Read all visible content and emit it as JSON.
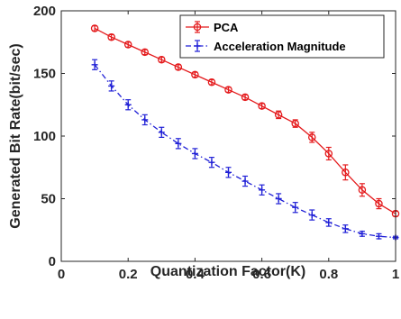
{
  "chart_data": {
    "type": "line",
    "xlabel": "Quantization Factor(K)",
    "ylabel": "Generated Bit Rate(bit/sec)",
    "xlim": [
      0,
      1
    ],
    "ylim": [
      0,
      200
    ],
    "xticks": [
      0,
      0.2,
      0.4,
      0.6,
      0.8,
      1
    ],
    "yticks": [
      0,
      50,
      100,
      150,
      200
    ],
    "xtick_labels": [
      "0",
      "0.2",
      "0.4",
      "0.6",
      "0.8",
      "1"
    ],
    "ytick_labels": [
      "0",
      "50",
      "100",
      "150",
      "200"
    ],
    "grid": false,
    "legend_position": "top-right",
    "x": [
      0.1,
      0.15,
      0.2,
      0.25,
      0.3,
      0.35,
      0.4,
      0.45,
      0.5,
      0.55,
      0.6,
      0.65,
      0.7,
      0.75,
      0.8,
      0.85,
      0.9,
      0.95,
      1.0
    ],
    "series": [
      {
        "name": "PCA",
        "color": "#e41a1c",
        "line_style": "solid",
        "marker": "circle",
        "values": [
          186,
          179,
          173,
          167,
          161,
          155,
          149,
          143,
          137,
          131,
          124,
          117,
          110,
          99,
          86,
          71,
          57,
          46,
          38
        ],
        "errors": [
          2,
          2,
          2,
          2,
          2,
          2,
          2,
          2,
          2,
          2,
          2,
          3,
          3,
          4,
          5,
          6,
          5,
          4,
          2
        ]
      },
      {
        "name": "Acceleration Magnitude",
        "color": "#1f1fd6",
        "line_style": "dashdot",
        "marker": "plus",
        "values": [
          157,
          140,
          125,
          113,
          103,
          94,
          86,
          79,
          71,
          64,
          57,
          50,
          43,
          37,
          31,
          26,
          22,
          20,
          19
        ],
        "errors": [
          4,
          4,
          4,
          4,
          4,
          4,
          4,
          4,
          4,
          4,
          4,
          4,
          4,
          4,
          3,
          3,
          2,
          2,
          1
        ]
      }
    ]
  }
}
